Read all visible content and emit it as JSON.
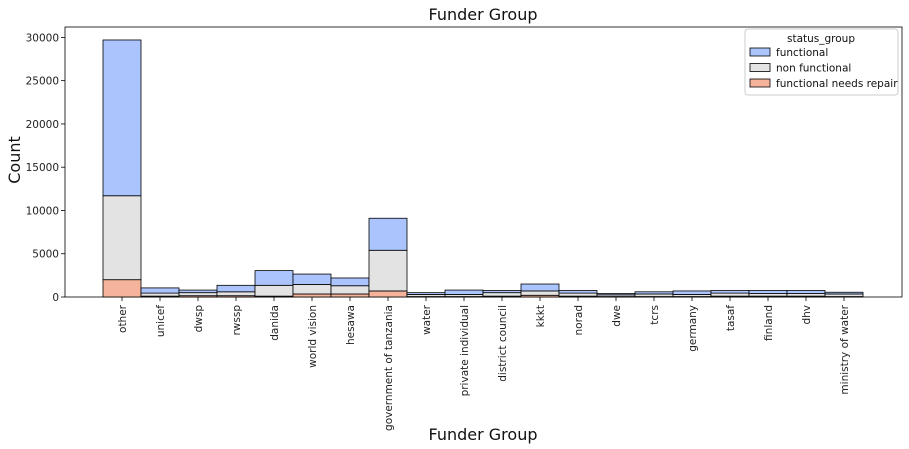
{
  "chart_data": {
    "type": "bar",
    "stacked": true,
    "title": "Funder Group",
    "xlabel": "Funder Group",
    "ylabel": "Count",
    "ylim": [
      0,
      31200
    ],
    "yticks": [
      0,
      5000,
      10000,
      15000,
      20000,
      25000,
      30000
    ],
    "grid": false,
    "legend_title": "status_group",
    "legend_placement": "top-right",
    "categories": [
      "other",
      "unicef",
      "dwsp",
      "rwssp",
      "danida",
      "world vision",
      "hesawa",
      "government of tanzania",
      "water",
      "private individual",
      "district council",
      "kkkt",
      "norad",
      "dwe",
      "tcrs",
      "germany",
      "tasaf",
      "finland",
      "dhv",
      "ministry of water"
    ],
    "series": [
      {
        "name": "functional",
        "color": "#abc4fe",
        "values": [
          18000,
          600,
          300,
          750,
          1700,
          1200,
          900,
          3700,
          200,
          500,
          250,
          800,
          300,
          150,
          250,
          400,
          300,
          350,
          350,
          200
        ]
      },
      {
        "name": "non functional",
        "color": "#e3e3e3",
        "values": [
          9700,
          350,
          350,
          450,
          1250,
          1100,
          950,
          4700,
          250,
          250,
          400,
          500,
          350,
          200,
          300,
          250,
          350,
          300,
          300,
          300
        ]
      },
      {
        "name": "functional needs repair",
        "color": "#f5b39b",
        "values": [
          2000,
          100,
          150,
          150,
          100,
          350,
          350,
          700,
          50,
          50,
          100,
          200,
          100,
          50,
          50,
          50,
          100,
          100,
          100,
          50
        ]
      }
    ]
  }
}
